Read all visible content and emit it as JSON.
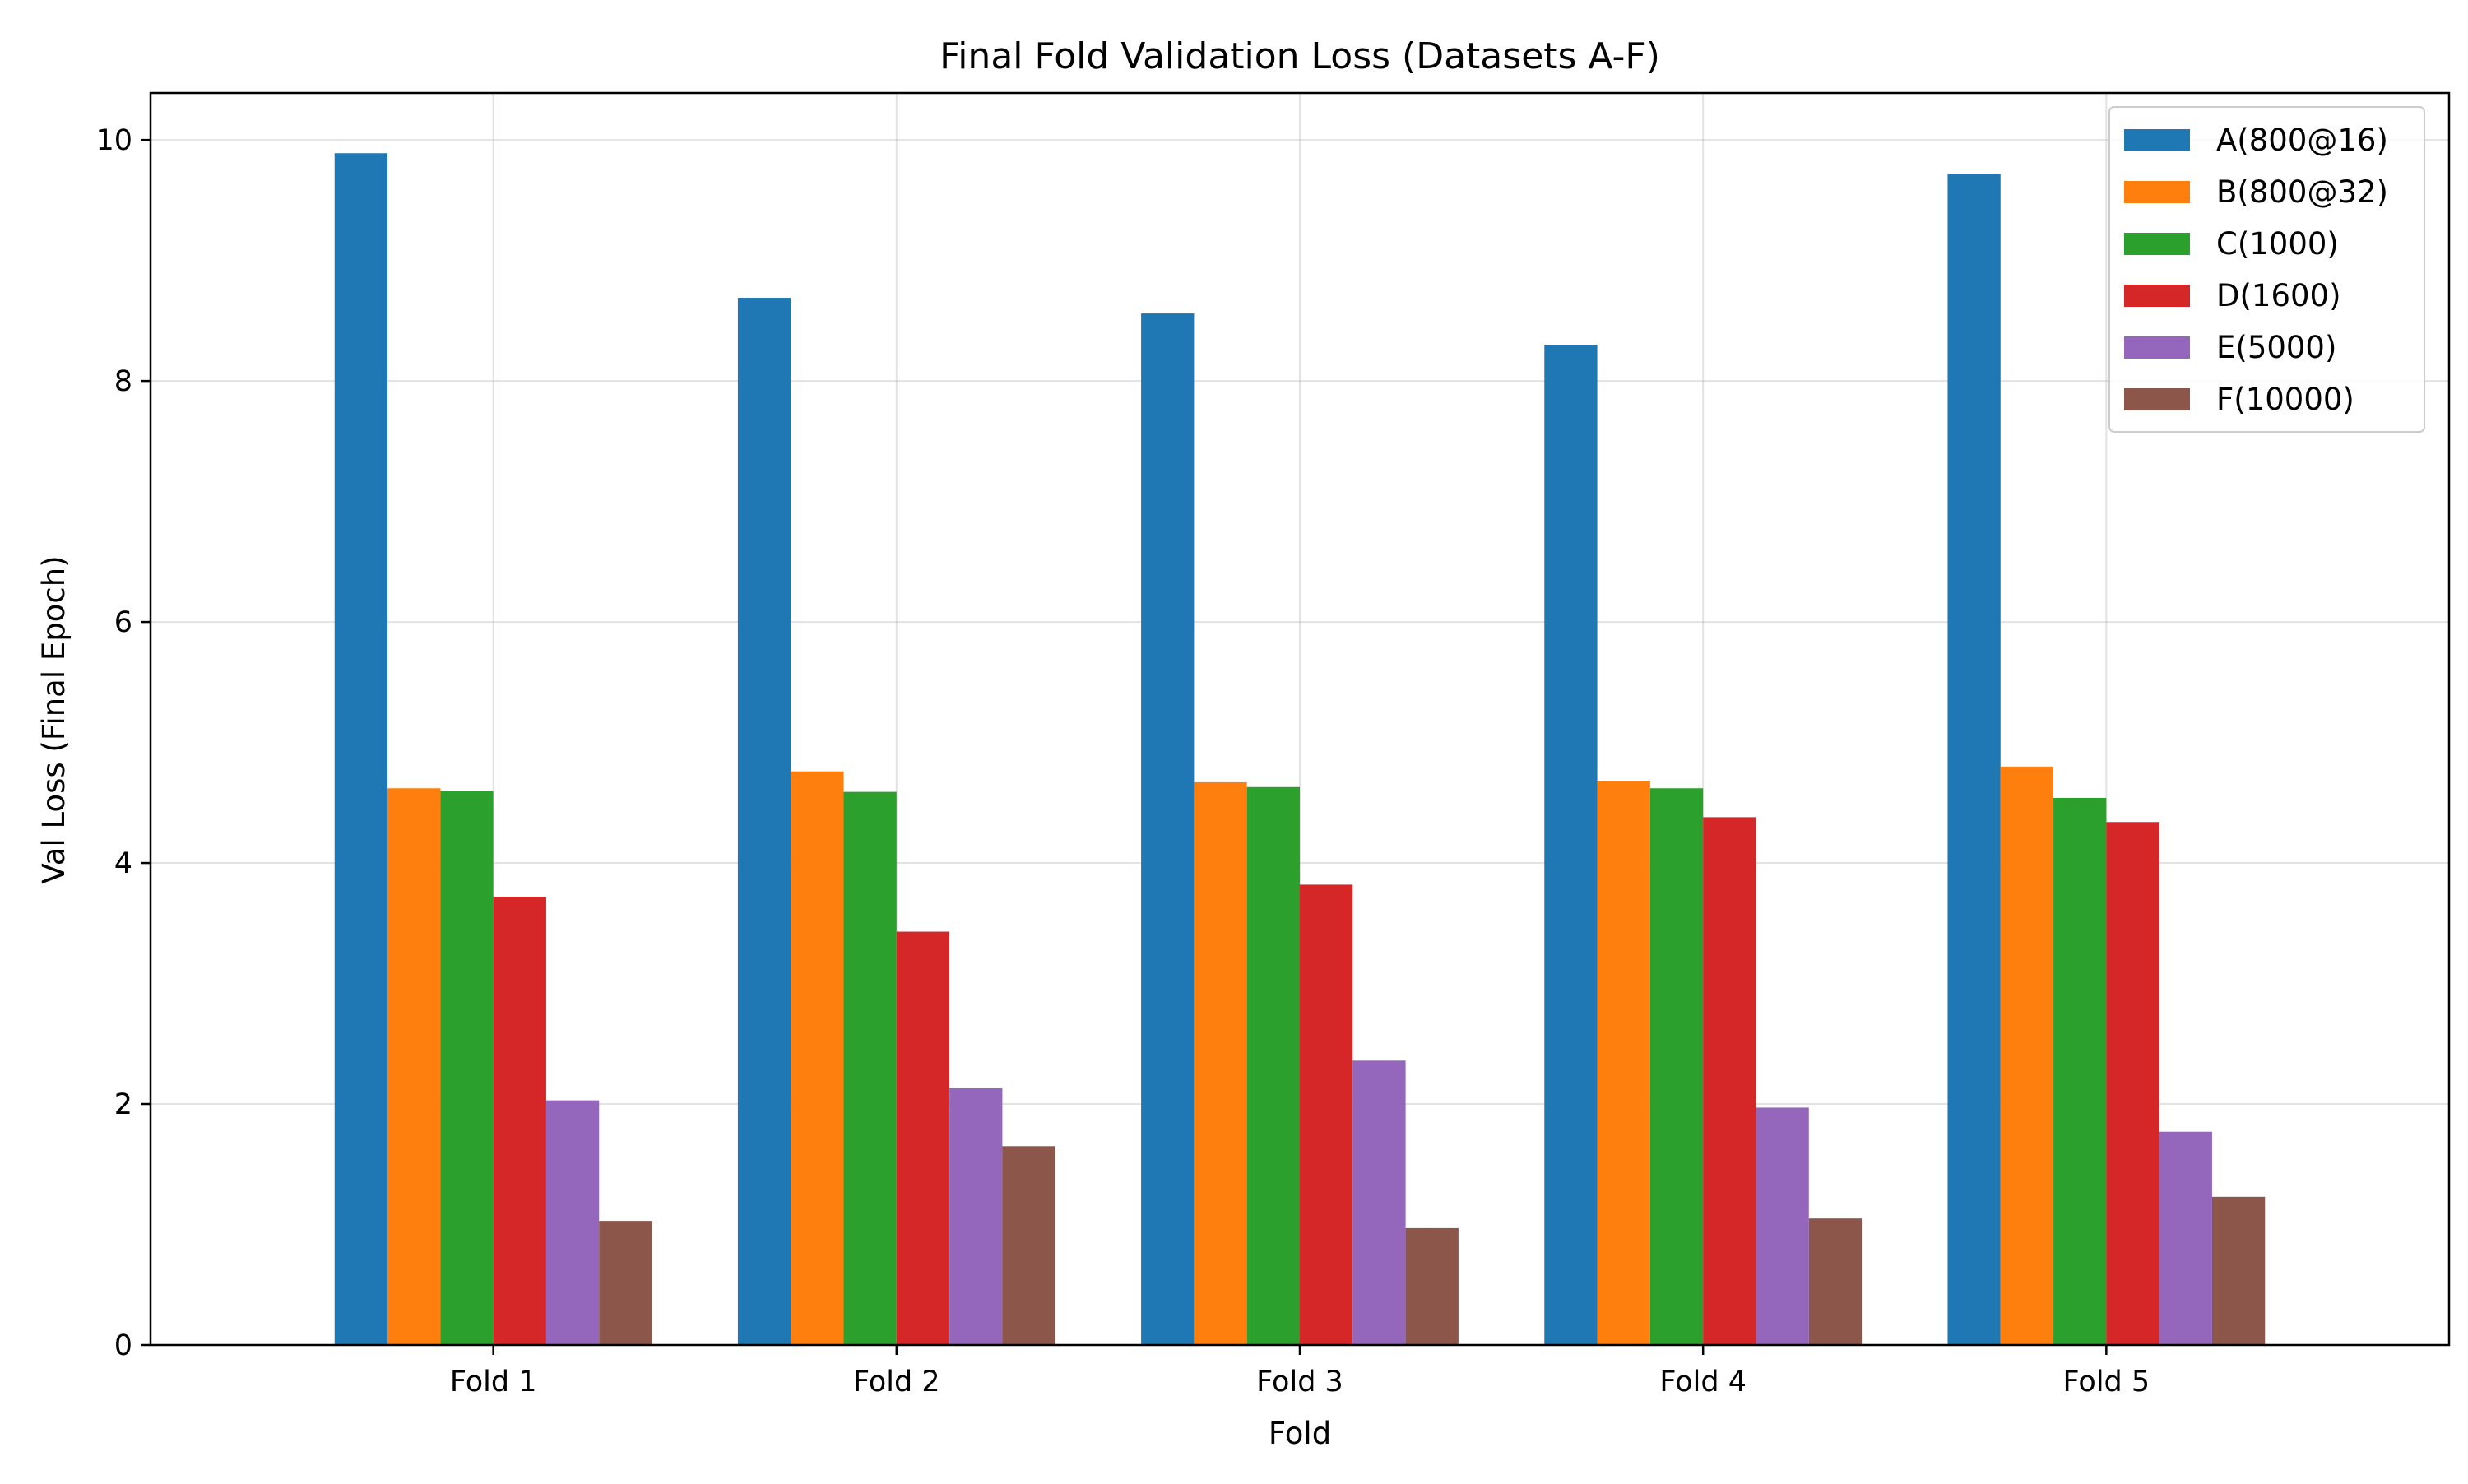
{
  "chart_data": {
    "type": "bar",
    "title": "Final Fold Validation Loss (Datasets A-F)",
    "xlabel": "Fold",
    "ylabel": "Val Loss (Final Epoch)",
    "categories": [
      "Fold 1",
      "Fold 2",
      "Fold 3",
      "Fold 4",
      "Fold 5"
    ],
    "ylim": [
      0,
      10.39
    ],
    "yticks": [
      0,
      2,
      4,
      6,
      8,
      10
    ],
    "grid": true,
    "legend_position": "top-right",
    "series": [
      {
        "name": "A(800@16)",
        "color": "#1f77b4",
        "values": [
          9.89,
          8.69,
          8.56,
          8.3,
          9.72
        ]
      },
      {
        "name": "B(800@32)",
        "color": "#ff7f0e",
        "values": [
          4.62,
          4.76,
          4.67,
          4.68,
          4.8
        ]
      },
      {
        "name": "C(1000)",
        "color": "#2ca02c",
        "values": [
          4.6,
          4.59,
          4.63,
          4.62,
          4.54
        ]
      },
      {
        "name": "D(1600)",
        "color": "#d62728",
        "values": [
          3.72,
          3.43,
          3.82,
          4.38,
          4.34
        ]
      },
      {
        "name": "E(5000)",
        "color": "#9467bd",
        "values": [
          2.03,
          2.13,
          2.36,
          1.97,
          1.77
        ]
      },
      {
        "name": "F(10000)",
        "color": "#8c564b",
        "values": [
          1.03,
          1.65,
          0.97,
          1.05,
          1.23
        ]
      }
    ]
  }
}
